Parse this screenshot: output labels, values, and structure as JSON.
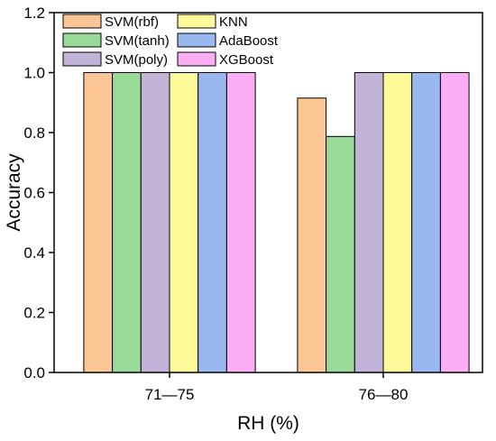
{
  "chart_data": {
    "type": "bar",
    "xlabel": "RH (%)",
    "ylabel": "Accuracy",
    "categories": [
      "71—75",
      "76—80"
    ],
    "ylim": [
      0,
      1.2
    ],
    "yticks": [
      "0.0",
      "0.2",
      "0.4",
      "0.6",
      "0.8",
      "1.0",
      "1.2"
    ],
    "grid": false,
    "legend_position": "top-left",
    "series": [
      {
        "name": "SVM(rbf)",
        "color": "#FBC594",
        "values": [
          1.0,
          0.915
        ]
      },
      {
        "name": "SVM(tanh)",
        "color": "#9ADA98",
        "values": [
          1.0,
          0.787
        ]
      },
      {
        "name": "SVM(poly)",
        "color": "#C2B3D8",
        "values": [
          1.0,
          1.0
        ]
      },
      {
        "name": "KNN",
        "color": "#FFFA99",
        "values": [
          1.0,
          1.0
        ]
      },
      {
        "name": "AdaBoost",
        "color": "#99B8EF",
        "values": [
          1.0,
          1.0
        ]
      },
      {
        "name": "XGBoost",
        "color": "#FCAEF5",
        "values": [
          1.0,
          1.0
        ]
      }
    ]
  }
}
